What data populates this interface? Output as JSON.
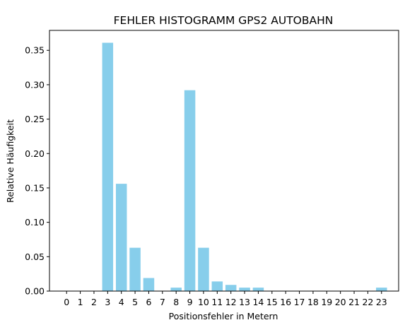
{
  "chart_data": {
    "type": "bar",
    "title": "FEHLER HISTOGRAMM GPS2 AUTOBAHN",
    "xlabel": "Positionsfehler in Metern",
    "ylabel": "Relative Häufigkeit",
    "categories": [
      "0",
      "1",
      "2",
      "3",
      "4",
      "5",
      "6",
      "7",
      "8",
      "9",
      "10",
      "11",
      "12",
      "13",
      "14",
      "15",
      "16",
      "17",
      "18",
      "19",
      "20",
      "21",
      "22",
      "23"
    ],
    "values": [
      0,
      0,
      0,
      0.361,
      0.156,
      0.063,
      0.019,
      0,
      0.005,
      0.292,
      0.063,
      0.014,
      0.009,
      0.005,
      0.005,
      0,
      0,
      0,
      0,
      0,
      0,
      0,
      0,
      0.005
    ],
    "yticks": [
      0.0,
      0.05,
      0.1,
      0.15,
      0.2,
      0.25,
      0.3,
      0.35
    ],
    "ytick_labels": [
      "0.00",
      "0.05",
      "0.10",
      "0.15",
      "0.20",
      "0.25",
      "0.30",
      "0.35"
    ],
    "ylim": [
      0,
      0.379
    ],
    "grid": false,
    "bar_color": "#87ceeb"
  }
}
